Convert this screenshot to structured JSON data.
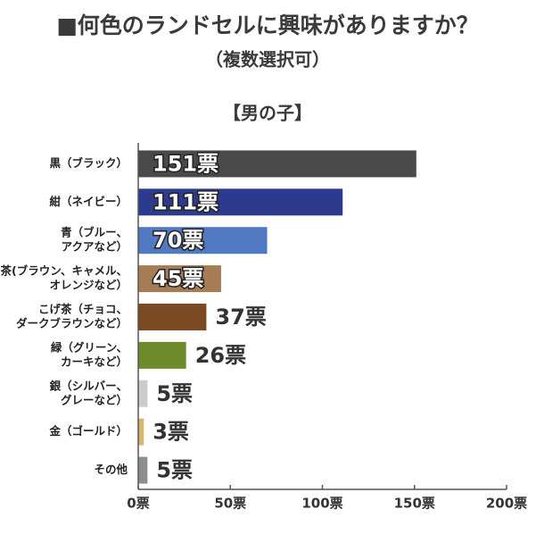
{
  "chart_data": {
    "type": "hbar",
    "title": "■何色のランドセルに興味がありますか？",
    "subtitle": "（複数選択可）",
    "group": "【男の子】",
    "categories": [
      [
        "黒（ブラック）"
      ],
      [
        "紺（ネイビー）"
      ],
      [
        "青（ブルー、",
        "アクアなど）"
      ],
      [
        "茶(ブラウン、キャメル、",
        "オレンジなど）"
      ],
      [
        "こげ茶（チョコ、",
        "ダークブラウンなど）"
      ],
      [
        "緑（グリーン、",
        "カーキなど）"
      ],
      [
        "銀（シルバー、",
        "グレーなど）"
      ],
      [
        "金（ゴールド）"
      ],
      [
        "その他"
      ]
    ],
    "values": [
      151,
      111,
      70,
      45,
      37,
      26,
      5,
      3,
      5
    ],
    "value_labels": [
      "151票",
      "111票",
      "70票",
      "45票",
      "37票",
      "26票",
      "5票",
      "3票",
      "5票"
    ],
    "colors": [
      "#4a4a4a",
      "#2c3b8e",
      "#5179c2",
      "#a67c55",
      "#7b4a22",
      "#6c8c2b",
      "#cbcbcb",
      "#d6b56c",
      "#8e8e8e"
    ],
    "xlim": [
      0,
      200
    ],
    "xticks": [
      {
        "value": 0,
        "label": "0票"
      },
      {
        "value": 50,
        "label": "50票"
      },
      {
        "value": 100,
        "label": "100票"
      },
      {
        "value": 150,
        "label": "150票"
      },
      {
        "value": 200,
        "label": "200票"
      }
    ]
  }
}
